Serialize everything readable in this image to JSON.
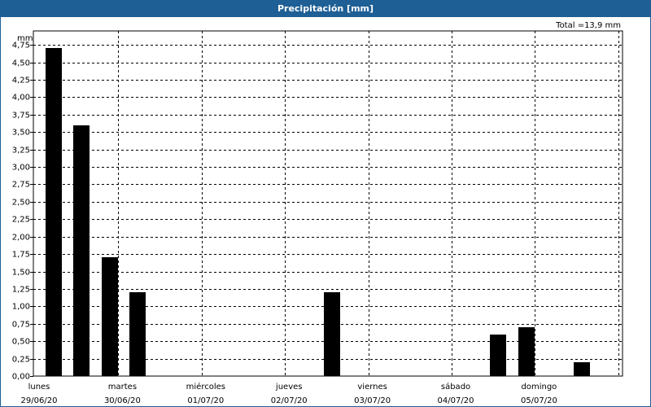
{
  "title": "Precipitación [mm]",
  "total": "Total =13,9 mm",
  "colors": {
    "header": "#1e5f95",
    "bar": "#000000",
    "grid": "#000000"
  },
  "chart_data": {
    "type": "bar",
    "title": "Precipitación [mm]",
    "ylabel": "mm",
    "ylim": [
      0,
      4.75
    ],
    "yticks": [
      "0,00",
      "0,25",
      "0,50",
      "0,75",
      "1,00",
      "1,25",
      "1,50",
      "1,75",
      "2,00",
      "2,25",
      "2,50",
      "2,75",
      "3,00",
      "3,25",
      "3,50",
      "3,75",
      "4,00",
      "4,25",
      "4,50",
      "4,75"
    ],
    "days": [
      {
        "day": "lunes",
        "date": "29/06/20"
      },
      {
        "day": "martes",
        "date": "30/06/20"
      },
      {
        "day": "miércoles",
        "date": "01/07/20"
      },
      {
        "day": "jueves",
        "date": "02/07/20"
      },
      {
        "day": "viernes",
        "date": "03/07/20"
      },
      {
        "day": "sábado",
        "date": "04/07/20"
      },
      {
        "day": "domingo",
        "date": "05/07/20"
      }
    ],
    "slots_per_day": 3,
    "values": [
      4.7,
      3.6,
      1.7,
      1.2,
      0,
      0,
      0,
      0,
      0,
      0,
      1.2,
      0,
      0,
      0,
      0,
      0,
      0.6,
      0.7,
      0,
      0.2,
      0
    ],
    "grid": true,
    "legend": "none"
  }
}
